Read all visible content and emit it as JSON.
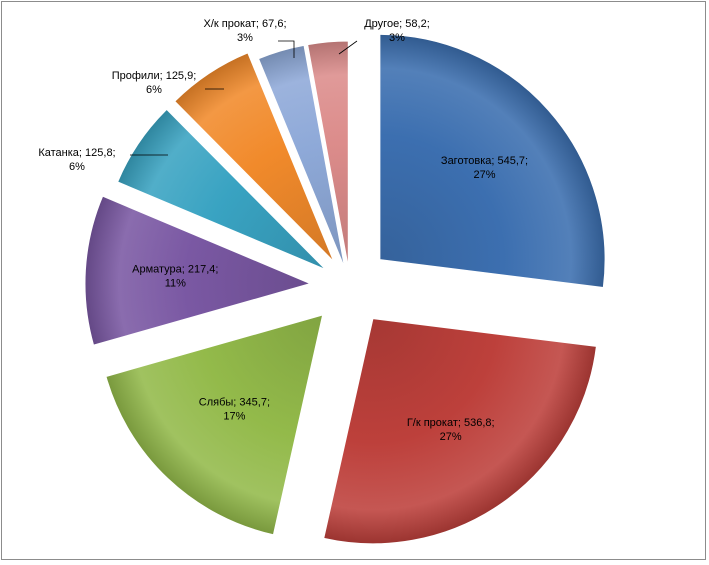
{
  "chart_data": {
    "type": "pie",
    "exploded": true,
    "style": "3d-shaded",
    "categories": [
      "Заготовка",
      "Г/к прокат",
      "Слябы",
      "Арматура",
      "Катанка",
      "Профили",
      "Х/к прокат",
      "Другое"
    ],
    "values": [
      545.7,
      536.8,
      345.7,
      217.4,
      125.8,
      125.9,
      67.6,
      58.2
    ],
    "labels": [
      {
        "line1": "Заготовка; 545,7;",
        "line2": "27%"
      },
      {
        "line1": "Г/к прокат; 536,8;",
        "line2": "27%"
      },
      {
        "line1": "Слябы; 345,7;",
        "line2": "17%"
      },
      {
        "line1": "Арматура; 217,4;",
        "line2": "11%"
      },
      {
        "line1": "Катанка; 125,8;",
        "line2": "6%"
      },
      {
        "line1": "Профили; 125,9;",
        "line2": "6%"
      },
      {
        "line1": "Х/к прокат;  67,6;",
        "line2": "3%"
      },
      {
        "line1": "Другое; 58,2;",
        "line2": "3%"
      }
    ],
    "colors": [
      "#3c6fb0",
      "#bd403b",
      "#93ba4a",
      "#7a58a3",
      "#39a3c2",
      "#f18a2b",
      "#8ea9d8",
      "#dc8c8b"
    ],
    "label_placement": [
      "inside",
      "inside",
      "inside",
      "inside",
      "outside",
      "outside",
      "outside",
      "outside"
    ]
  }
}
